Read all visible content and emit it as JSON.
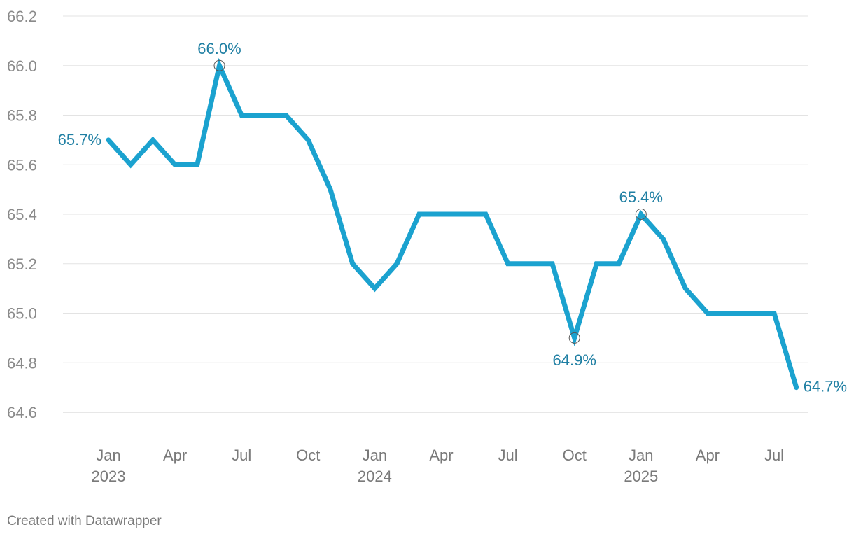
{
  "chart_data": {
    "type": "line",
    "title": "",
    "xlabel": "",
    "ylabel": "",
    "ylim": [
      64.6,
      66.2
    ],
    "yticks": [
      64.6,
      64.8,
      65.0,
      65.2,
      65.4,
      65.6,
      65.8,
      66.0,
      66.2
    ],
    "ytick_labels": [
      "64.6",
      "64.8",
      "65.0",
      "65.2",
      "65.4",
      "65.6",
      "65.8",
      "66.0",
      "66.2"
    ],
    "grid": true,
    "legend": "none",
    "line_color": "#1ba2cf",
    "label_color": "#1f7fa3",
    "x": [
      "2023-01",
      "2023-02",
      "2023-03",
      "2023-04",
      "2023-05",
      "2023-06",
      "2023-07",
      "2023-08",
      "2023-09",
      "2023-10",
      "2023-11",
      "2023-12",
      "2024-01",
      "2024-02",
      "2024-03",
      "2024-04",
      "2024-05",
      "2024-06",
      "2024-07",
      "2024-08",
      "2024-09",
      "2024-10",
      "2024-11",
      "2024-12",
      "2025-01",
      "2025-02",
      "2025-03",
      "2025-04",
      "2025-05",
      "2025-06",
      "2025-07",
      "2025-08"
    ],
    "series": [
      {
        "values": [
          65.7,
          65.6,
          65.7,
          65.6,
          65.6,
          66.0,
          65.8,
          65.8,
          65.8,
          65.7,
          65.5,
          65.2,
          65.1,
          65.2,
          65.4,
          65.4,
          65.4,
          65.4,
          65.2,
          65.2,
          65.2,
          64.9,
          65.2,
          65.2,
          65.4,
          65.3,
          65.1,
          65.0,
          65.0,
          65.0,
          65.0,
          64.7
        ]
      }
    ],
    "xticks": [
      {
        "month": 0,
        "line1": "Jan",
        "line2": "2023"
      },
      {
        "month": 3,
        "line1": "Apr",
        "line2": ""
      },
      {
        "month": 6,
        "line1": "Jul",
        "line2": ""
      },
      {
        "month": 9,
        "line1": "Oct",
        "line2": ""
      },
      {
        "month": 12,
        "line1": "Jan",
        "line2": "2024"
      },
      {
        "month": 15,
        "line1": "Apr",
        "line2": ""
      },
      {
        "month": 18,
        "line1": "Jul",
        "line2": ""
      },
      {
        "month": 21,
        "line1": "Oct",
        "line2": ""
      },
      {
        "month": 24,
        "line1": "Jan",
        "line2": "2025"
      },
      {
        "month": 27,
        "line1": "Apr",
        "line2": ""
      },
      {
        "month": 30,
        "line1": "Jul",
        "line2": ""
      }
    ],
    "annotations": [
      {
        "index": 0,
        "text": "65.7%",
        "position": "left",
        "marker": false
      },
      {
        "index": 5,
        "text": "66.0%",
        "position": "above",
        "marker": true
      },
      {
        "index": 21,
        "text": "64.9%",
        "position": "below",
        "marker": true
      },
      {
        "index": 24,
        "text": "65.4%",
        "position": "above",
        "marker": true
      },
      {
        "index": 31,
        "text": "64.7%",
        "position": "right",
        "marker": false
      }
    ]
  },
  "footer": {
    "credit": "Created with Datawrapper"
  }
}
